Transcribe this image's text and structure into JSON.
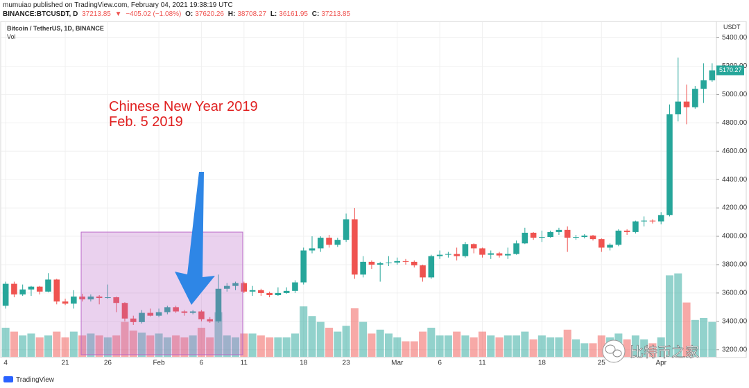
{
  "header": {
    "publisher": "mumuiao published on TradingView.com, February 04, 2021 19:38:19 UTC",
    "symbol": "BINANCE:BTCUSDT, D",
    "last": "37213.85",
    "direction": "▼",
    "change": "−405.02 (−1.08%)",
    "quote": [
      {
        "label": "O:",
        "value": "37620.26"
      },
      {
        "label": "H:",
        "value": "38708.27"
      },
      {
        "label": "L:",
        "value": "36161.95"
      },
      {
        "label": "C:",
        "value": "37213.85"
      }
    ]
  },
  "footer": {
    "brand": "TradingView",
    "watermark": "比特币之家"
  },
  "chart_data": {
    "type": "candlestick",
    "title": "Bitcoin / TetherUS, 1D, BINANCE",
    "volume_label": "Vol",
    "y_unit": "USDT",
    "annotation": [
      "Chinese New Year 2019",
      "Feb. 5 2019"
    ],
    "categories": [
      "4",
      null,
      null,
      null,
      null,
      null,
      null,
      "21",
      null,
      null,
      null,
      null,
      "26",
      null,
      null,
      null,
      null,
      null,
      "Feb",
      null,
      null,
      null,
      null,
      "6",
      null,
      null,
      null,
      null,
      "11",
      null,
      null,
      null,
      null,
      null,
      null,
      "18",
      null,
      null,
      null,
      null,
      "23",
      null,
      null,
      null,
      null,
      null,
      "Mar",
      null,
      null,
      null,
      null,
      "6",
      null,
      null,
      null,
      null,
      "11",
      null,
      null,
      null,
      null,
      null,
      null,
      "18",
      null,
      null,
      null,
      null,
      null,
      null,
      "25",
      null,
      null,
      null,
      null,
      null,
      null,
      "Apr",
      null,
      null,
      null,
      null,
      null,
      null
    ],
    "open": [
      3510,
      3665,
      3590,
      3625,
      3645,
      3610,
      3695,
      3540,
      3525,
      3575,
      3555,
      3575,
      3565,
      3570,
      3530,
      3420,
      3395,
      3460,
      3440,
      3465,
      3500,
      3470,
      3460,
      3470,
      3415,
      3400,
      3630,
      3650,
      3670,
      3610,
      3620,
      3600,
      3585,
      3600,
      3615,
      3675,
      3900,
      3915,
      3990,
      3940,
      3975,
      4120,
      3730,
      3820,
      3800,
      3810,
      3815,
      3825,
      3820,
      3795,
      3710,
      3860,
      3870,
      3875,
      3860,
      3945,
      3915,
      3870,
      3880,
      3865,
      3875,
      3950,
      4025,
      3990,
      3995,
      4030,
      4045,
      3990,
      3995,
      4005,
      3980,
      3920,
      3940,
      4040,
      4030,
      4105,
      4110,
      4105,
      4150,
      4860,
      4950,
      4910,
      5040,
      5100
    ],
    "high": [
      3680,
      3680,
      3660,
      3650,
      3650,
      3740,
      3700,
      3560,
      3620,
      3595,
      3590,
      3585,
      3660,
      3575,
      3535,
      3440,
      3480,
      3490,
      3490,
      3510,
      3510,
      3480,
      3480,
      3480,
      3430,
      3730,
      3670,
      3680,
      3680,
      3650,
      3630,
      3610,
      3640,
      3640,
      3690,
      3920,
      4000,
      4000,
      4010,
      3990,
      4160,
      4200,
      3860,
      3830,
      3820,
      3860,
      3850,
      3840,
      3830,
      3800,
      3870,
      3900,
      3890,
      3920,
      3960,
      3950,
      3920,
      3900,
      3890,
      3920,
      3970,
      4060,
      4030,
      4040,
      4040,
      4060,
      4070,
      4010,
      4015,
      4010,
      3985,
      3950,
      4050,
      4050,
      4110,
      4140,
      4120,
      4170,
      4930,
      5260,
      5070,
      5060,
      5220,
      5220
    ],
    "low": [
      3490,
      3570,
      3580,
      3580,
      3590,
      3605,
      3520,
      3515,
      3490,
      3540,
      3540,
      3520,
      3560,
      3465,
      3400,
      3375,
      3385,
      3435,
      3430,
      3450,
      3460,
      3440,
      3450,
      3400,
      3390,
      3390,
      3610,
      3620,
      3600,
      3580,
      3580,
      3570,
      3580,
      3595,
      3600,
      3660,
      3880,
      3890,
      3920,
      3925,
      3960,
      3700,
      3710,
      3770,
      3680,
      3790,
      3800,
      3800,
      3780,
      3680,
      3700,
      3840,
      3850,
      3830,
      3850,
      3880,
      3850,
      3840,
      3850,
      3840,
      3870,
      3945,
      3975,
      3960,
      3990,
      4010,
      3890,
      3975,
      3985,
      3970,
      3890,
      3900,
      3930,
      4010,
      4020,
      4070,
      4090,
      4085,
      4140,
      4810,
      4790,
      4900,
      4940,
      5090
    ],
    "close": [
      3665,
      3590,
      3625,
      3645,
      3610,
      3695,
      3540,
      3525,
      3575,
      3555,
      3575,
      3565,
      3570,
      3530,
      3420,
      3395,
      3460,
      3440,
      3465,
      3500,
      3470,
      3460,
      3470,
      3415,
      3400,
      3630,
      3650,
      3670,
      3610,
      3620,
      3600,
      3585,
      3600,
      3615,
      3675,
      3900,
      3915,
      3990,
      3940,
      3975,
      4120,
      3730,
      3820,
      3800,
      3810,
      3815,
      3825,
      3820,
      3795,
      3710,
      3860,
      3870,
      3875,
      3860,
      3945,
      3915,
      3870,
      3880,
      3865,
      3875,
      3950,
      4025,
      3990,
      3995,
      4030,
      4045,
      3990,
      3995,
      4005,
      3980,
      3920,
      3940,
      4040,
      4030,
      4105,
      4110,
      4105,
      4150,
      4860,
      4950,
      4910,
      5040,
      5100,
      5170.27
    ],
    "volume": [
      30,
      26,
      22,
      24,
      20,
      22,
      26,
      20,
      26,
      22,
      24,
      22,
      20,
      22,
      36,
      27,
      25,
      22,
      24,
      20,
      22,
      20,
      22,
      30,
      20,
      46,
      22,
      20,
      24,
      24,
      22,
      20,
      20,
      20,
      24,
      52,
      42,
      36,
      30,
      26,
      32,
      50,
      36,
      24,
      28,
      24,
      20,
      16,
      16,
      26,
      30,
      22,
      22,
      26,
      22,
      20,
      26,
      22,
      20,
      22,
      22,
      26,
      18,
      22,
      20,
      20,
      28,
      18,
      14,
      14,
      22,
      20,
      24,
      18,
      22,
      18,
      14,
      20,
      84,
      86,
      56,
      38,
      40,
      36
    ],
    "up_color": "#26a69a",
    "down_color": "#ef5350",
    "ylim": [
      3150,
      5510
    ],
    "yticks": [
      {
        "value": 3200,
        "label": "3200.00"
      },
      {
        "value": 3400,
        "label": "3400.00"
      },
      {
        "value": 3600,
        "label": "3600.00"
      },
      {
        "value": 3800,
        "label": "3800.00"
      },
      {
        "value": 4000,
        "label": "4000.00"
      },
      {
        "value": 4200,
        "label": "4200.00"
      },
      {
        "value": 4400,
        "label": "4400.00"
      },
      {
        "value": 4600,
        "label": "4600.00"
      },
      {
        "value": 4800,
        "label": "4800.00"
      },
      {
        "value": 5000,
        "label": "5000.00"
      },
      {
        "value": 5200,
        "label": "5200.00"
      },
      {
        "value": 5400,
        "label": "5400.00"
      }
    ],
    "grid": true
  }
}
